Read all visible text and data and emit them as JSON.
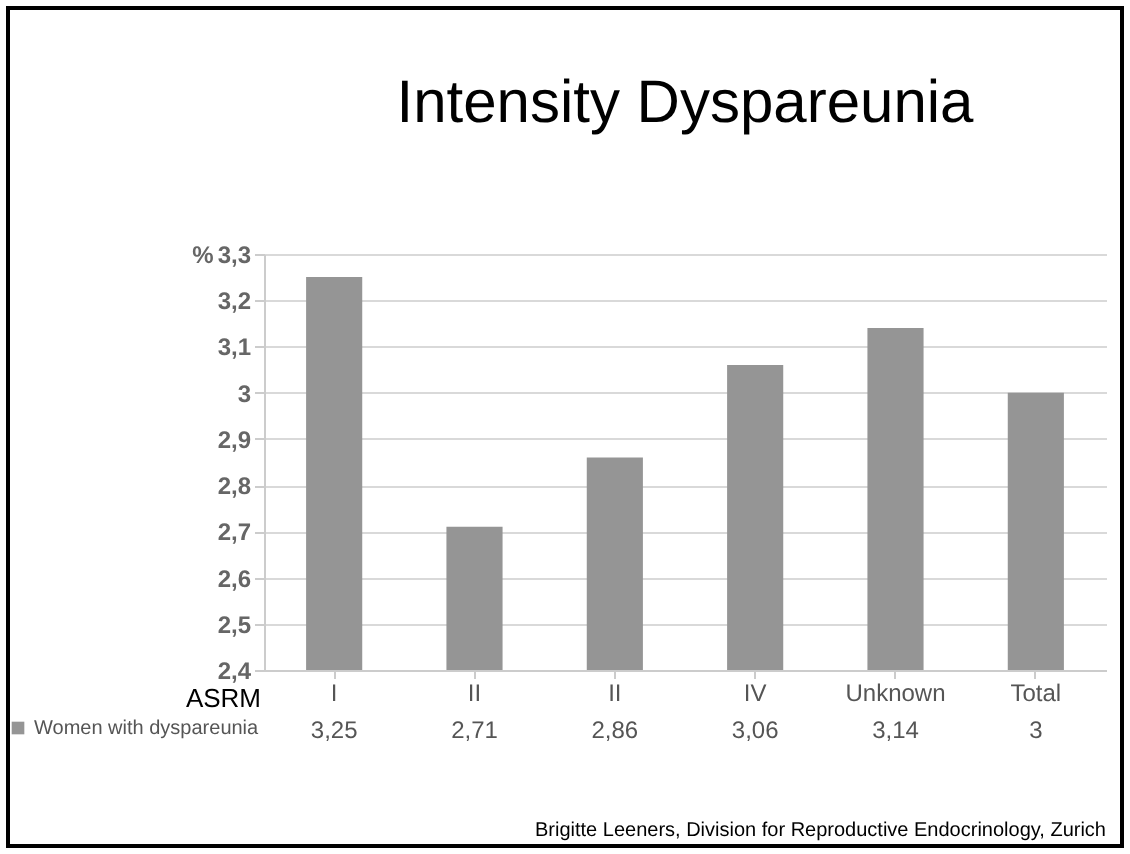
{
  "chart_data": {
    "type": "bar",
    "title": "Intensity Dyspareunia",
    "xlabel": "ASRM",
    "ylabel": "%",
    "categories": [
      "I",
      "II",
      "II",
      "IV",
      "Unknown",
      "Total"
    ],
    "series": [
      {
        "name": "Women with dyspareunia",
        "color": "#959595",
        "values": [
          3.25,
          2.71,
          2.86,
          3.06,
          3.14,
          3
        ],
        "value_labels": [
          "3,25",
          "2,71",
          "2,86",
          "3,06",
          "3,14",
          "3"
        ]
      }
    ],
    "ylim": [
      2.4,
      3.3
    ],
    "yticks": [
      {
        "value": 2.4,
        "label": "2,4"
      },
      {
        "value": 2.5,
        "label": "2,5"
      },
      {
        "value": 2.6,
        "label": "2,6"
      },
      {
        "value": 2.7,
        "label": "2,7"
      },
      {
        "value": 2.8,
        "label": "2,8"
      },
      {
        "value": 2.9,
        "label": "2,9"
      },
      {
        "value": 3,
        "label": "3"
      },
      {
        "value": 3.1,
        "label": "3,1"
      },
      {
        "value": 3.2,
        "label": "3,2"
      },
      {
        "value": 3.3,
        "label": "3,3"
      }
    ],
    "grid": "y",
    "legend": "bottom",
    "annotations": [
      "Brigitte Leeners, Division for Reproductive Endocrinology, Zurich"
    ]
  }
}
